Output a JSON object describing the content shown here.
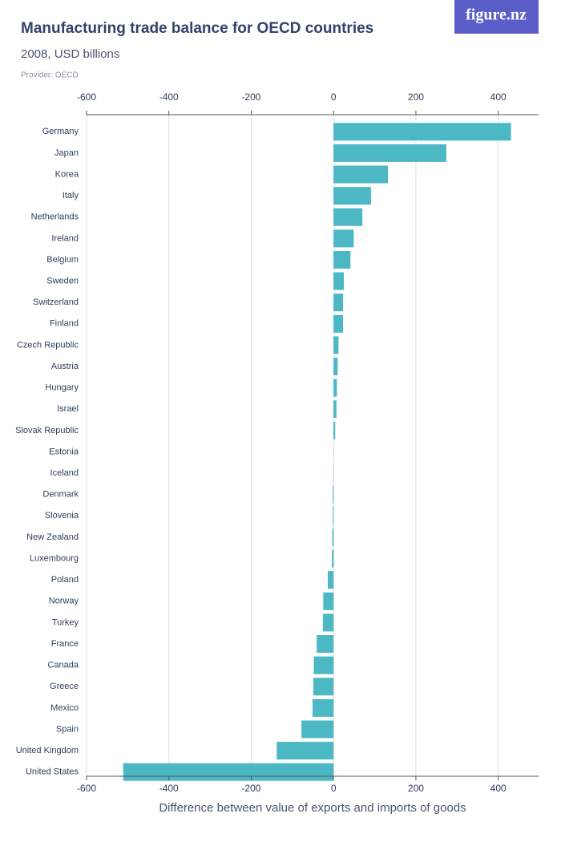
{
  "logo": "figure.nz",
  "chart_data": {
    "type": "bar",
    "orientation": "horizontal",
    "title": "Manufacturing trade balance for OECD countries",
    "subtitle": "2008, USD billions",
    "source": "Provider: OECD",
    "x_label": "Difference between value of exports and imports of goods",
    "categories": [
      "Germany",
      "Japan",
      "Korea",
      "Italy",
      "Netherlands",
      "Ireland",
      "Belgium",
      "Sweden",
      "Switzerland",
      "Finland",
      "Czech Republic",
      "Austria",
      "Hungary",
      "Israel",
      "Slovak Republic",
      "Estonia",
      "Iceland",
      "Denmark",
      "Slovenia",
      "New Zealand",
      "Luxembourg",
      "Poland",
      "Norway",
      "Turkey",
      "France",
      "Canada",
      "Greece",
      "Mexico",
      "Spain",
      "United Kingdom",
      "United States"
    ],
    "values": [
      431,
      274,
      132,
      91,
      70,
      49,
      41,
      25,
      23,
      23,
      12,
      10,
      8,
      7,
      4,
      0.3,
      -0.5,
      -2,
      -2,
      -3,
      -4,
      -14,
      -25,
      -26,
      -41,
      -48,
      -49,
      -51,
      -78,
      -138,
      -511
    ],
    "color": "#4cb8c4",
    "xlim": [
      -600,
      498
    ],
    "xticks": [
      -600,
      -400,
      -200,
      0,
      200,
      400
    ],
    "grid": true
  }
}
